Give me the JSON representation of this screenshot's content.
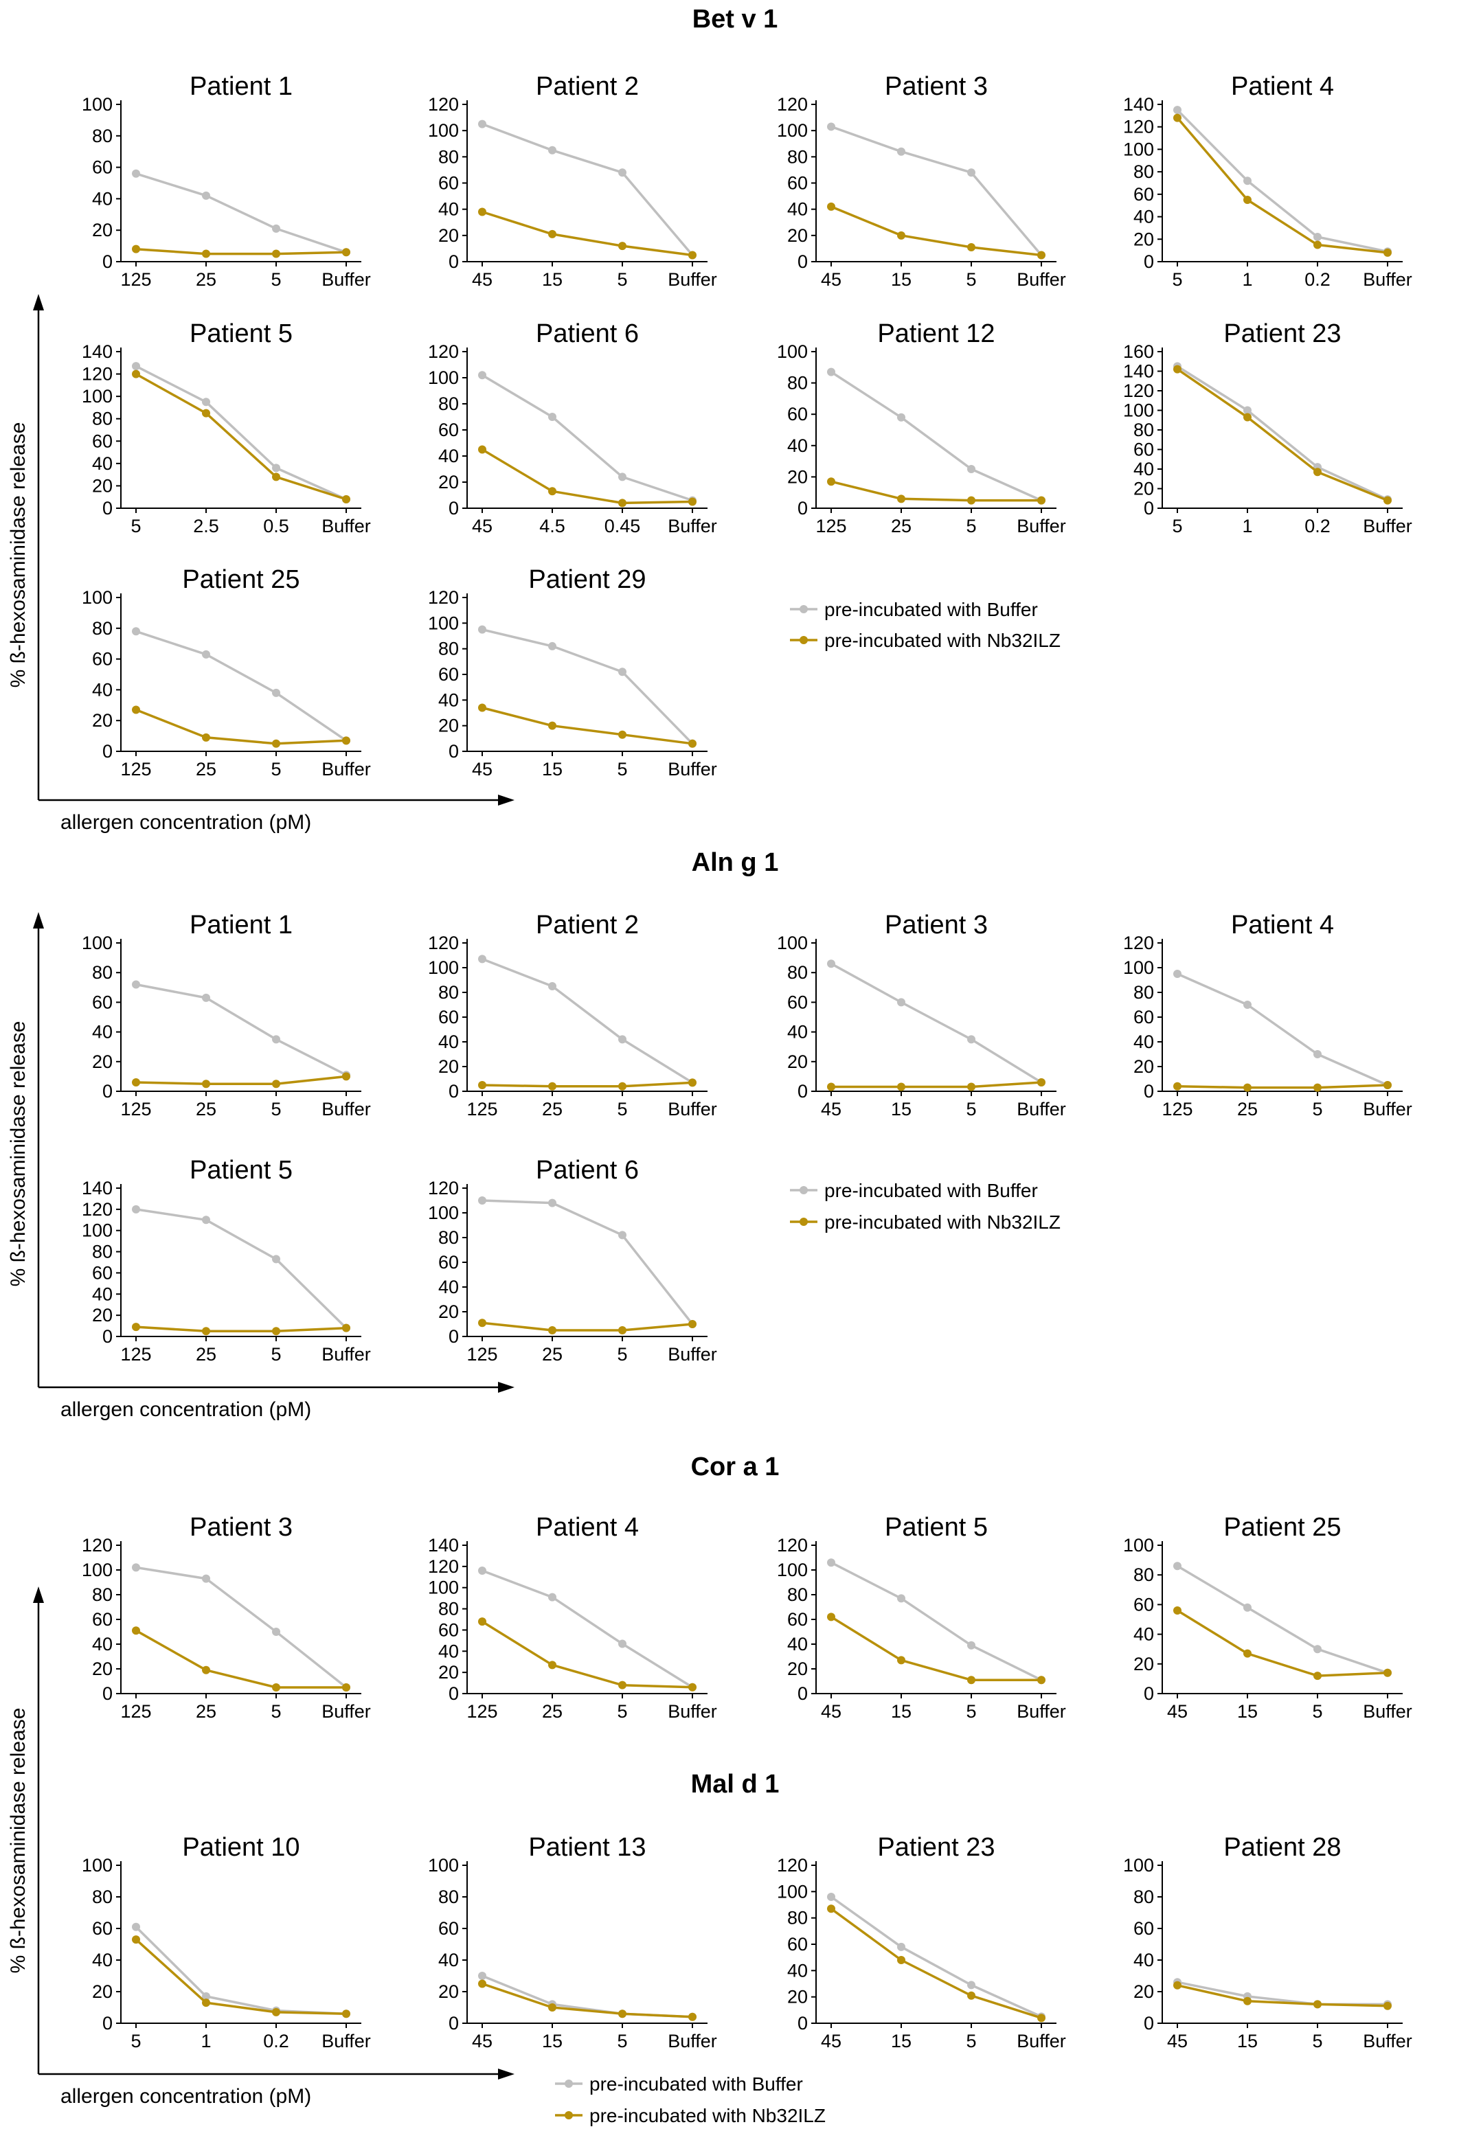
{
  "figure": {
    "colors": {
      "buffer": "#bfbfbf",
      "nb": "#b8900a",
      "axis": "#000000"
    },
    "axis_titles": {
      "y": "% ß-hexosaminidase release",
      "x": "allergen concentration (pM)"
    },
    "legend": {
      "buffer_label": "pre-incubated with Buffer",
      "nb_label": "pre-incubated with Nb32ILZ"
    }
  },
  "chart_data": [
    {
      "type": "line",
      "section": "Bet v 1",
      "title": "Patient 1",
      "categories": [
        "125",
        "25",
        "5",
        "Buffer"
      ],
      "ylim": [
        0,
        100
      ],
      "ystep": 20,
      "series": [
        {
          "name": "pre-incubated with Buffer",
          "values": [
            56,
            42,
            21,
            6
          ]
        },
        {
          "name": "pre-incubated with Nb32ILZ",
          "values": [
            8,
            5,
            5,
            6
          ]
        }
      ]
    },
    {
      "type": "line",
      "section": "Bet v 1",
      "title": "Patient 2",
      "categories": [
        "45",
        "15",
        "5",
        "Buffer"
      ],
      "ylim": [
        0,
        120
      ],
      "ystep": 20,
      "series": [
        {
          "name": "pre-incubated with Buffer",
          "values": [
            105,
            85,
            68,
            5
          ]
        },
        {
          "name": "pre-incubated with Nb32ILZ",
          "values": [
            38,
            21,
            12,
            5
          ]
        }
      ]
    },
    {
      "type": "line",
      "section": "Bet v 1",
      "title": "Patient 3",
      "categories": [
        "45",
        "15",
        "5",
        "Buffer"
      ],
      "ylim": [
        0,
        120
      ],
      "ystep": 20,
      "series": [
        {
          "name": "pre-incubated with Buffer",
          "values": [
            103,
            84,
            68,
            5
          ]
        },
        {
          "name": "pre-incubated with Nb32ILZ",
          "values": [
            42,
            20,
            11,
            5
          ]
        }
      ]
    },
    {
      "type": "line",
      "section": "Bet v 1",
      "title": "Patient 4",
      "categories": [
        "5",
        "1",
        "0.2",
        "Buffer"
      ],
      "ylim": [
        0,
        140
      ],
      "ystep": 20,
      "series": [
        {
          "name": "pre-incubated with Buffer",
          "values": [
            135,
            72,
            22,
            9
          ]
        },
        {
          "name": "pre-incubated with Nb32ILZ",
          "values": [
            128,
            55,
            15,
            8
          ]
        }
      ]
    },
    {
      "type": "line",
      "section": "Bet v 1",
      "title": "Patient 5",
      "categories": [
        "5",
        "2.5",
        "0.5",
        "Buffer"
      ],
      "ylim": [
        0,
        140
      ],
      "ystep": 20,
      "series": [
        {
          "name": "pre-incubated with Buffer",
          "values": [
            127,
            95,
            36,
            8
          ]
        },
        {
          "name": "pre-incubated with Nb32ILZ",
          "values": [
            120,
            85,
            28,
            8
          ]
        }
      ]
    },
    {
      "type": "line",
      "section": "Bet v 1",
      "title": "Patient 6",
      "categories": [
        "45",
        "4.5",
        "0.45",
        "Buffer"
      ],
      "ylim": [
        0,
        120
      ],
      "ystep": 20,
      "series": [
        {
          "name": "pre-incubated with Buffer",
          "values": [
            102,
            70,
            24,
            6
          ]
        },
        {
          "name": "pre-incubated with Nb32ILZ",
          "values": [
            45,
            13,
            4,
            5
          ]
        }
      ]
    },
    {
      "type": "line",
      "section": "Bet v 1",
      "title": "Patient 12",
      "categories": [
        "125",
        "25",
        "5",
        "Buffer"
      ],
      "ylim": [
        0,
        100
      ],
      "ystep": 20,
      "series": [
        {
          "name": "pre-incubated with Buffer",
          "values": [
            87,
            58,
            25,
            5
          ]
        },
        {
          "name": "pre-incubated with Nb32ILZ",
          "values": [
            17,
            6,
            5,
            5
          ]
        }
      ]
    },
    {
      "type": "line",
      "section": "Bet v 1",
      "title": "Patient 23",
      "categories": [
        "5",
        "1",
        "0.2",
        "Buffer"
      ],
      "ylim": [
        0,
        160
      ],
      "ystep": 20,
      "series": [
        {
          "name": "pre-incubated with Buffer",
          "values": [
            145,
            100,
            42,
            9
          ]
        },
        {
          "name": "pre-incubated with Nb32ILZ",
          "values": [
            142,
            93,
            37,
            8
          ]
        }
      ]
    },
    {
      "type": "line",
      "section": "Bet v 1",
      "title": "Patient 25",
      "categories": [
        "125",
        "25",
        "5",
        "Buffer"
      ],
      "ylim": [
        0,
        100
      ],
      "ystep": 20,
      "series": [
        {
          "name": "pre-incubated with Buffer",
          "values": [
            78,
            63,
            38,
            7
          ]
        },
        {
          "name": "pre-incubated with Nb32ILZ",
          "values": [
            27,
            9,
            5,
            7
          ]
        }
      ]
    },
    {
      "type": "line",
      "section": "Bet v 1",
      "title": "Patient 29",
      "categories": [
        "45",
        "15",
        "5",
        "Buffer"
      ],
      "ylim": [
        0,
        120
      ],
      "ystep": 20,
      "series": [
        {
          "name": "pre-incubated with Buffer",
          "values": [
            95,
            82,
            62,
            6
          ]
        },
        {
          "name": "pre-incubated with Nb32ILZ",
          "values": [
            34,
            20,
            13,
            6
          ]
        }
      ]
    },
    {
      "type": "line",
      "section": "Aln g 1",
      "title": "Patient 1",
      "categories": [
        "125",
        "25",
        "5",
        "Buffer"
      ],
      "ylim": [
        0,
        100
      ],
      "ystep": 20,
      "series": [
        {
          "name": "pre-incubated with Buffer",
          "values": [
            72,
            63,
            35,
            11
          ]
        },
        {
          "name": "pre-incubated with Nb32ILZ",
          "values": [
            6,
            5,
            5,
            10
          ]
        }
      ]
    },
    {
      "type": "line",
      "section": "Aln g 1",
      "title": "Patient 2",
      "categories": [
        "125",
        "25",
        "5",
        "Buffer"
      ],
      "ylim": [
        0,
        120
      ],
      "ystep": 20,
      "series": [
        {
          "name": "pre-incubated with Buffer",
          "values": [
            107,
            85,
            42,
            7
          ]
        },
        {
          "name": "pre-incubated with Nb32ILZ",
          "values": [
            5,
            4,
            4,
            7
          ]
        }
      ]
    },
    {
      "type": "line",
      "section": "Aln g 1",
      "title": "Patient 3",
      "categories": [
        "45",
        "15",
        "5",
        "Buffer"
      ],
      "ylim": [
        0,
        100
      ],
      "ystep": 20,
      "series": [
        {
          "name": "pre-incubated with Buffer",
          "values": [
            86,
            60,
            35,
            6
          ]
        },
        {
          "name": "pre-incubated with Nb32ILZ",
          "values": [
            3,
            3,
            3,
            6
          ]
        }
      ]
    },
    {
      "type": "line",
      "section": "Aln g 1",
      "title": "Patient 4",
      "categories": [
        "125",
        "25",
        "5",
        "Buffer"
      ],
      "ylim": [
        0,
        120
      ],
      "ystep": 20,
      "series": [
        {
          "name": "pre-incubated with Buffer",
          "values": [
            95,
            70,
            30,
            5
          ]
        },
        {
          "name": "pre-incubated with Nb32ILZ",
          "values": [
            4,
            3,
            3,
            5
          ]
        }
      ]
    },
    {
      "type": "line",
      "section": "Aln g 1",
      "title": "Patient 5",
      "categories": [
        "125",
        "25",
        "5",
        "Buffer"
      ],
      "ylim": [
        0,
        140
      ],
      "ystep": 20,
      "series": [
        {
          "name": "pre-incubated with Buffer",
          "values": [
            120,
            110,
            73,
            8
          ]
        },
        {
          "name": "pre-incubated with Nb32ILZ",
          "values": [
            9,
            5,
            5,
            8
          ]
        }
      ]
    },
    {
      "type": "line",
      "section": "Aln g 1",
      "title": "Patient 6",
      "categories": [
        "125",
        "25",
        "5",
        "Buffer"
      ],
      "ylim": [
        0,
        120
      ],
      "ystep": 20,
      "series": [
        {
          "name": "pre-incubated with Buffer",
          "values": [
            110,
            108,
            82,
            10
          ]
        },
        {
          "name": "pre-incubated with Nb32ILZ",
          "values": [
            11,
            5,
            5,
            10
          ]
        }
      ]
    },
    {
      "type": "line",
      "section": "Cor a 1",
      "title": "Patient 3",
      "categories": [
        "125",
        "25",
        "5",
        "Buffer"
      ],
      "ylim": [
        0,
        120
      ],
      "ystep": 20,
      "series": [
        {
          "name": "pre-incubated with Buffer",
          "values": [
            102,
            93,
            50,
            5
          ]
        },
        {
          "name": "pre-incubated with Nb32ILZ",
          "values": [
            51,
            19,
            5,
            5
          ]
        }
      ]
    },
    {
      "type": "line",
      "section": "Cor a 1",
      "title": "Patient 4",
      "categories": [
        "125",
        "25",
        "5",
        "Buffer"
      ],
      "ylim": [
        0,
        140
      ],
      "ystep": 20,
      "series": [
        {
          "name": "pre-incubated with Buffer",
          "values": [
            116,
            91,
            47,
            6
          ]
        },
        {
          "name": "pre-incubated with Nb32ILZ",
          "values": [
            68,
            27,
            8,
            6
          ]
        }
      ]
    },
    {
      "type": "line",
      "section": "Cor a 1",
      "title": "Patient 5",
      "categories": [
        "45",
        "15",
        "5",
        "Buffer"
      ],
      "ylim": [
        0,
        120
      ],
      "ystep": 20,
      "series": [
        {
          "name": "pre-incubated with Buffer",
          "values": [
            106,
            77,
            39,
            11
          ]
        },
        {
          "name": "pre-incubated with Nb32ILZ",
          "values": [
            62,
            27,
            11,
            11
          ]
        }
      ]
    },
    {
      "type": "line",
      "section": "Cor a 1",
      "title": "Patient 25",
      "categories": [
        "45",
        "15",
        "5",
        "Buffer"
      ],
      "ylim": [
        0,
        100
      ],
      "ystep": 20,
      "series": [
        {
          "name": "pre-incubated with Buffer",
          "values": [
            86,
            58,
            30,
            14
          ]
        },
        {
          "name": "pre-incubated with Nb32ILZ",
          "values": [
            56,
            27,
            12,
            14
          ]
        }
      ]
    },
    {
      "type": "line",
      "section": "Mal d 1",
      "title": "Patient 10",
      "categories": [
        "5",
        "1",
        "0.2",
        "Buffer"
      ],
      "ylim": [
        0,
        100
      ],
      "ystep": 20,
      "series": [
        {
          "name": "pre-incubated with Buffer",
          "values": [
            61,
            17,
            8,
            6
          ]
        },
        {
          "name": "pre-incubated with Nb32ILZ",
          "values": [
            53,
            13,
            7,
            6
          ]
        }
      ]
    },
    {
      "type": "line",
      "section": "Mal d 1",
      "title": "Patient 13",
      "categories": [
        "45",
        "15",
        "5",
        "Buffer"
      ],
      "ylim": [
        0,
        100
      ],
      "ystep": 20,
      "series": [
        {
          "name": "pre-incubated with Buffer",
          "values": [
            30,
            12,
            6,
            4
          ]
        },
        {
          "name": "pre-incubated with Nb32ILZ",
          "values": [
            25,
            10,
            6,
            4
          ]
        }
      ]
    },
    {
      "type": "line",
      "section": "Mal d 1",
      "title": "Patient 23",
      "categories": [
        "45",
        "15",
        "5",
        "Buffer"
      ],
      "ylim": [
        0,
        120
      ],
      "ystep": 20,
      "series": [
        {
          "name": "pre-incubated with Buffer",
          "values": [
            96,
            58,
            29,
            5
          ]
        },
        {
          "name": "pre-incubated with Nb32ILZ",
          "values": [
            87,
            48,
            21,
            4
          ]
        }
      ]
    },
    {
      "type": "line",
      "section": "Mal d 1",
      "title": "Patient 28",
      "categories": [
        "45",
        "15",
        "5",
        "Buffer"
      ],
      "ylim": [
        0,
        100
      ],
      "ystep": 20,
      "series": [
        {
          "name": "pre-incubated with Buffer",
          "values": [
            26,
            17,
            12,
            12
          ]
        },
        {
          "name": "pre-incubated with Nb32ILZ",
          "values": [
            24,
            14,
            12,
            11
          ]
        }
      ]
    }
  ]
}
